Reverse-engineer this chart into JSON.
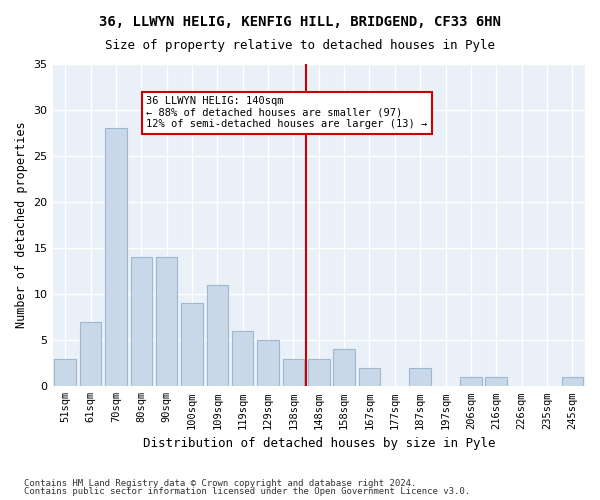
{
  "title1": "36, LLWYN HELIG, KENFIG HILL, BRIDGEND, CF33 6HN",
  "title2": "Size of property relative to detached houses in Pyle",
  "xlabel": "Distribution of detached houses by size in Pyle",
  "ylabel": "Number of detached properties",
  "categories": [
    "51sqm",
    "61sqm",
    "70sqm",
    "80sqm",
    "90sqm",
    "100sqm",
    "109sqm",
    "119sqm",
    "129sqm",
    "138sqm",
    "148sqm",
    "158sqm",
    "167sqm",
    "177sqm",
    "187sqm",
    "197sqm",
    "206sqm",
    "216sqm",
    "226sqm",
    "235sqm",
    "245sqm"
  ],
  "values": [
    3,
    7,
    28,
    14,
    14,
    9,
    11,
    6,
    5,
    3,
    3,
    4,
    2,
    0,
    2,
    0,
    1,
    1,
    0,
    0,
    1
  ],
  "bar_color": "#c8d8e8",
  "bar_edge_color": "#a0b8cc",
  "background_color": "#eaf0f8",
  "grid_color": "#ffffff",
  "vline_x": 9.5,
  "vline_color": "#cc0000",
  "annotation_text": "36 LLWYN HELIG: 140sqm\n← 88% of detached houses are smaller (97)\n12% of semi-detached houses are larger (13) →",
  "annotation_box_color": "#cc0000",
  "ylim": [
    0,
    35
  ],
  "yticks": [
    0,
    5,
    10,
    15,
    20,
    25,
    30,
    35
  ],
  "footer1": "Contains HM Land Registry data © Crown copyright and database right 2024.",
  "footer2": "Contains public sector information licensed under the Open Government Licence v3.0."
}
